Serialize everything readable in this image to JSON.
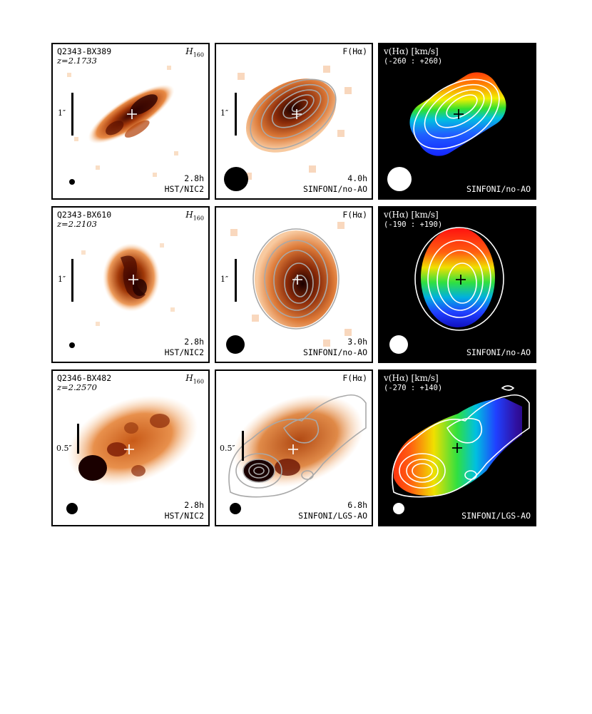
{
  "rows": [
    {
      "object": "Q2343-BX389",
      "redshift": "z=2.1733",
      "filter": "H",
      "filter_sub": "160",
      "scale_label": "1″",
      "hst_time": "2.8h",
      "hst_instrument": "HST/NIC2",
      "flux_label": "F(Hα)",
      "sinfoni_time": "4.0h",
      "sinfoni_mode": "SINFONI/no-AO",
      "velocity_label": "v(Hα) [km/s]",
      "velocity_range": "(-260 : +260)",
      "velocity_mode": "SINFONI/no-AO"
    },
    {
      "object": "Q2343-BX610",
      "redshift": "z=2.2103",
      "filter": "H",
      "filter_sub": "160",
      "scale_label": "1″",
      "hst_time": "2.8h",
      "hst_instrument": "HST/NIC2",
      "flux_label": "F(Hα)",
      "sinfoni_time": "3.0h",
      "sinfoni_mode": "SINFONI/no-AO",
      "velocity_label": "v(Hα) [km/s]",
      "velocity_range": "(-190 : +190)",
      "velocity_mode": "SINFONI/no-AO"
    },
    {
      "object": "Q2346-BX482",
      "redshift": "z=2.2570",
      "filter": "H",
      "filter_sub": "160",
      "scale_label": "0.5″",
      "hst_time": "2.8h",
      "hst_instrument": "HST/NIC2",
      "flux_label": "F(Hα)",
      "sinfoni_time": "6.8h",
      "sinfoni_mode": "SINFONI/LGS-AO",
      "velocity_label": "v(Hα) [km/s]",
      "velocity_range": "(-270 : +140)",
      "velocity_mode": "SINFONI/LGS-AO"
    }
  ],
  "colors": {
    "flux_dark": "#1a0000",
    "flux_mid": "#c04a10",
    "flux_light": "#f5b070",
    "contour_gray": "#a8a8a8",
    "contour_white": "#ffffff"
  }
}
